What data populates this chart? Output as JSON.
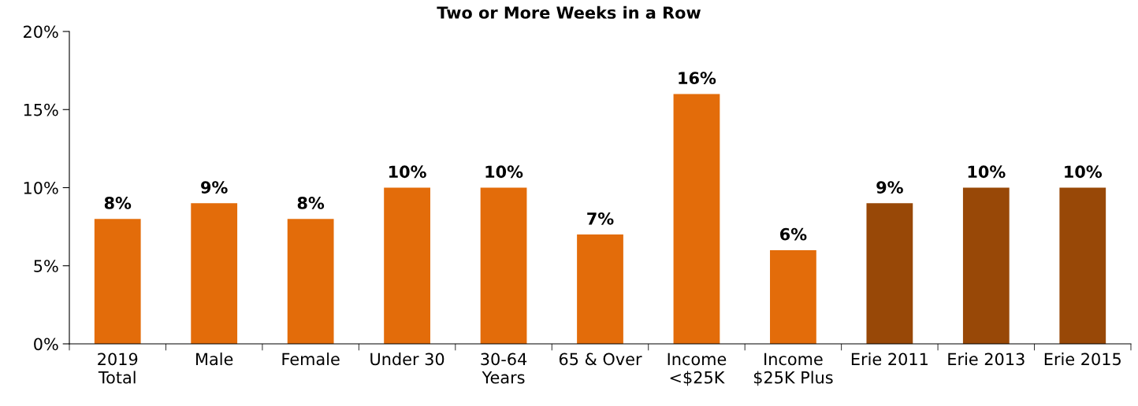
{
  "chart_data": {
    "type": "bar",
    "title": "Two or More Weeks in a Row",
    "categories": [
      "2019\nTotal",
      "Male",
      "Female",
      "Under 30",
      "30-64\nYears",
      "65 & Over",
      "Income\n<$25K",
      "Income\n$25K Plus",
      "Erie 2011",
      "Erie 2013",
      "Erie 2015"
    ],
    "values": [
      8,
      9,
      8,
      10,
      10,
      7,
      16,
      6,
      9,
      10,
      10
    ],
    "value_labels": [
      "8%",
      "9%",
      "8%",
      "10%",
      "10%",
      "7%",
      "16%",
      "6%",
      "9%",
      "10%",
      "10%"
    ],
    "colors": [
      "#e36c0a",
      "#e36c0a",
      "#e36c0a",
      "#e36c0a",
      "#e36c0a",
      "#e36c0a",
      "#e36c0a",
      "#e36c0a",
      "#984807",
      "#984807",
      "#984807"
    ],
    "ylim": [
      0,
      20
    ],
    "yticks": [
      {
        "value": 0,
        "label": "0%"
      },
      {
        "value": 5,
        "label": "5%"
      },
      {
        "value": 10,
        "label": "10%"
      },
      {
        "value": 15,
        "label": "15%"
      },
      {
        "value": 20,
        "label": "20%"
      }
    ],
    "grid": false,
    "legend": false
  }
}
